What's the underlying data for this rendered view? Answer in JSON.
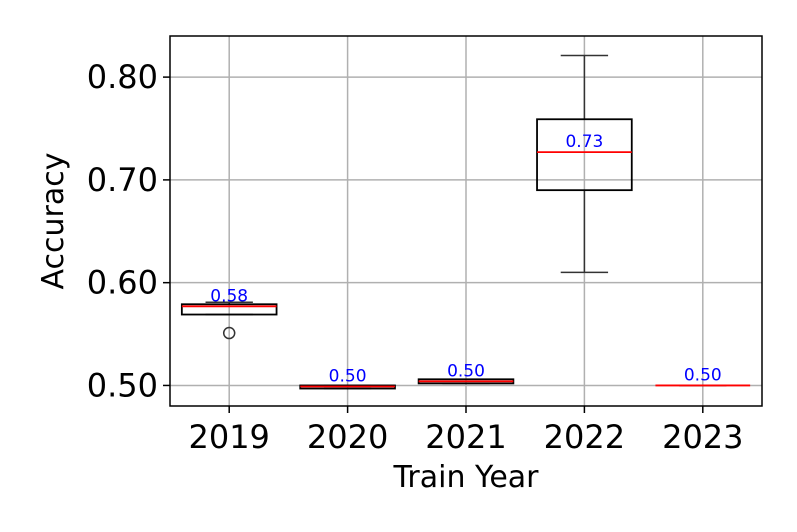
{
  "chart_data": {
    "type": "box",
    "title": "",
    "xlabel": "Train Year",
    "ylabel": "Accuracy",
    "ylim": [
      0.48,
      0.84
    ],
    "yticks": [
      0.5,
      0.6,
      0.7,
      0.8
    ],
    "ytick_labels": [
      "0.50",
      "0.60",
      "0.70",
      "0.80"
    ],
    "grid": true,
    "categories": [
      "2019",
      "2020",
      "2021",
      "2022",
      "2023"
    ],
    "boxes": [
      {
        "category": "2019",
        "whisker_low": 0.569,
        "q1": 0.569,
        "median": 0.577,
        "q3": 0.579,
        "whisker_high": 0.581,
        "outliers": [
          0.551
        ],
        "median_label": "0.58"
      },
      {
        "category": "2020",
        "whisker_low": 0.497,
        "q1": 0.497,
        "median": 0.499,
        "q3": 0.5,
        "whisker_high": 0.5,
        "outliers": [],
        "median_label": "0.50"
      },
      {
        "category": "2021",
        "whisker_low": 0.502,
        "q1": 0.502,
        "median": 0.504,
        "q3": 0.506,
        "whisker_high": 0.506,
        "outliers": [],
        "median_label": "0.50"
      },
      {
        "category": "2022",
        "whisker_low": 0.61,
        "q1": 0.69,
        "median": 0.727,
        "q3": 0.759,
        "whisker_high": 0.821,
        "outliers": [],
        "median_label": "0.73"
      },
      {
        "category": "2023",
        "whisker_low": 0.5,
        "q1": 0.5,
        "median": 0.5,
        "q3": 0.5,
        "whisker_high": 0.5,
        "outliers": [],
        "median_label": "0.50"
      }
    ],
    "colors": {
      "box": "#000000",
      "median": "#ff0000",
      "median_label": "#0000ff",
      "grid": "#b0b0b0",
      "whisker": "#333333"
    }
  }
}
